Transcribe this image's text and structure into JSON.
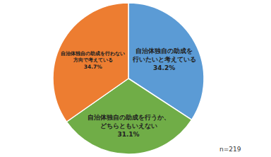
{
  "chart_data": {
    "type": "pie",
    "categories": [
      "自治体独自の助成を\n行いたいと考えている",
      "自治体独自の助成を行うか、\nどちらともいえない",
      "自治体独自の助成を行わない\n方向で考えている"
    ],
    "values": [
      34.2,
      31.1,
      34.7
    ],
    "value_labels": [
      "34.2%",
      "31.1%",
      "34.7%"
    ],
    "colors": [
      "#5b9bd5",
      "#70ad47",
      "#ed7d31"
    ],
    "data_labels": true,
    "annotations": [
      "n=219"
    ]
  }
}
